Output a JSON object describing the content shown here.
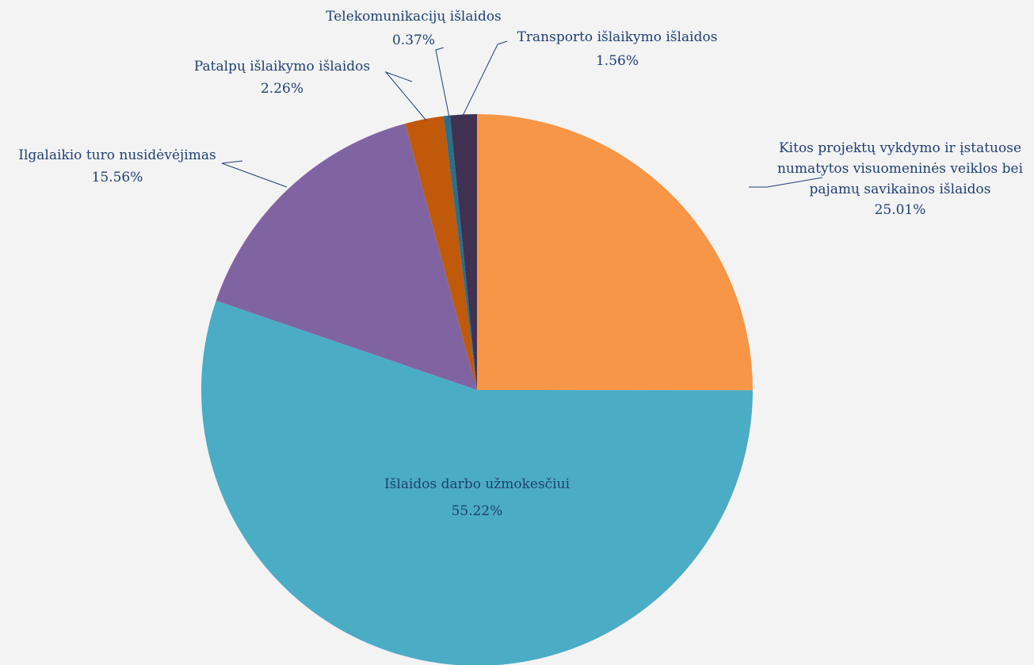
{
  "chart_data": {
    "type": "pie",
    "start_angle_deg": 0,
    "direction": "clockwise",
    "slices": [
      {
        "label": [
          "Kitos projektų vykdymo ir  įstatuose",
          "numatytos visuomeninės veiklos bei",
          "pajamų savikainos išlaidos"
        ],
        "value": 25.01,
        "display": "25.01%",
        "color": "#f79646"
      },
      {
        "label": [
          "Išlaidos darbo užmokesčiui"
        ],
        "value": 55.22,
        "display": "55.22%",
        "color": "#4bacc6"
      },
      {
        "label": [
          "Ilgalaikio turo nusidėvėjimas"
        ],
        "value": 15.56,
        "display": "15.56%",
        "color": "#8064a2"
      },
      {
        "label": [
          "Patalpų išlaikymo išlaidos"
        ],
        "value": 2.26,
        "display": "2.26%",
        "color": "#c0590a"
      },
      {
        "label": [
          "Telekomunikacijų išlaidos"
        ],
        "value": 0.37,
        "display": "0.37%",
        "color": "#2a6f8a"
      },
      {
        "label": [
          "Transporto išlaikymo išlaidos"
        ],
        "value": 1.56,
        "display": "1.56%",
        "color": "#3f3151"
      }
    ],
    "legend": "none"
  }
}
